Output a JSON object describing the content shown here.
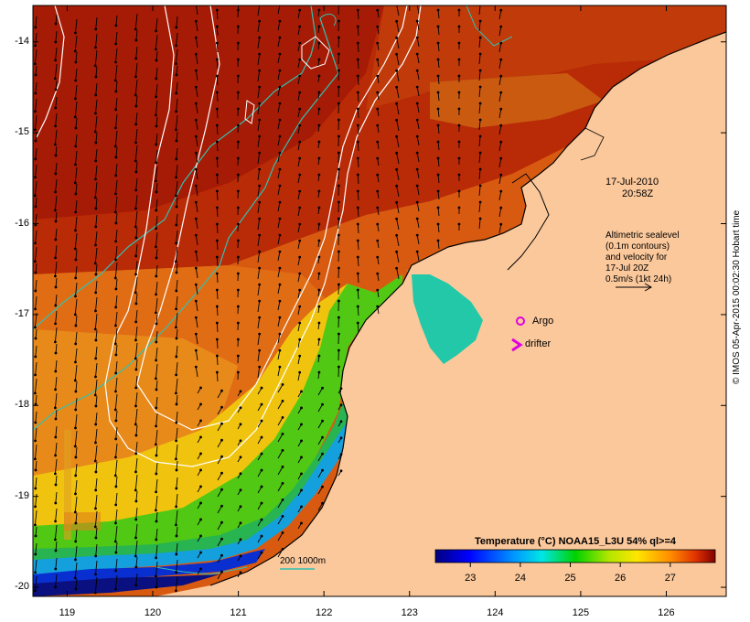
{
  "map": {
    "y_ticks": [
      {
        "label": "-14",
        "lat": -14
      },
      {
        "label": "-15",
        "lat": -15
      },
      {
        "label": "-16",
        "lat": -16
      },
      {
        "label": "-17",
        "lat": -17
      },
      {
        "label": "-18",
        "lat": -18
      },
      {
        "label": "-19",
        "lat": -19
      },
      {
        "label": "-20",
        "lat": -20
      }
    ],
    "x_ticks": [
      {
        "label": "119",
        "lon": 119
      },
      {
        "label": "120",
        "lon": 120
      },
      {
        "label": "121",
        "lon": 121
      },
      {
        "label": "122",
        "lon": 122
      },
      {
        "label": "123",
        "lon": 123
      },
      {
        "label": "124",
        "lon": 124
      },
      {
        "label": "125",
        "lon": 125
      },
      {
        "label": "126",
        "lon": 126
      }
    ],
    "lon_range": [
      118.6,
      126.7
    ],
    "lat_range": [
      -20.1,
      -13.6
    ]
  },
  "annotations": {
    "date_line1": "17-Jul-2010",
    "date_line2": "20:58Z",
    "altimetry_line1": "Altimetric sealevel",
    "altimetry_line2": "(0.1m contours)",
    "altimetry_line3": "and velocity for",
    "altimetry_line4": "17-Jul 20Z",
    "altimetry_line5": "0.5m/s (1kt 24h)",
    "argo_label": "Argo",
    "drifter_label": "drifter",
    "bathy_label": "200  1000m",
    "credit": "© IMOS 05-Apr-2015 00:02:30 Hobart time"
  },
  "colorbar": {
    "title": "Temperature (°C) NOAA15_L3U 54% ql>=4",
    "ticks": [
      "23",
      "24",
      "25",
      "26",
      "27"
    ],
    "range": [
      22.3,
      27.9
    ]
  },
  "colors": {
    "land": "#fbc89b",
    "argo": "#e000e0",
    "drifter": "#e000e0",
    "bathy_line": "#33c0b0",
    "contour": "#ffffff"
  }
}
